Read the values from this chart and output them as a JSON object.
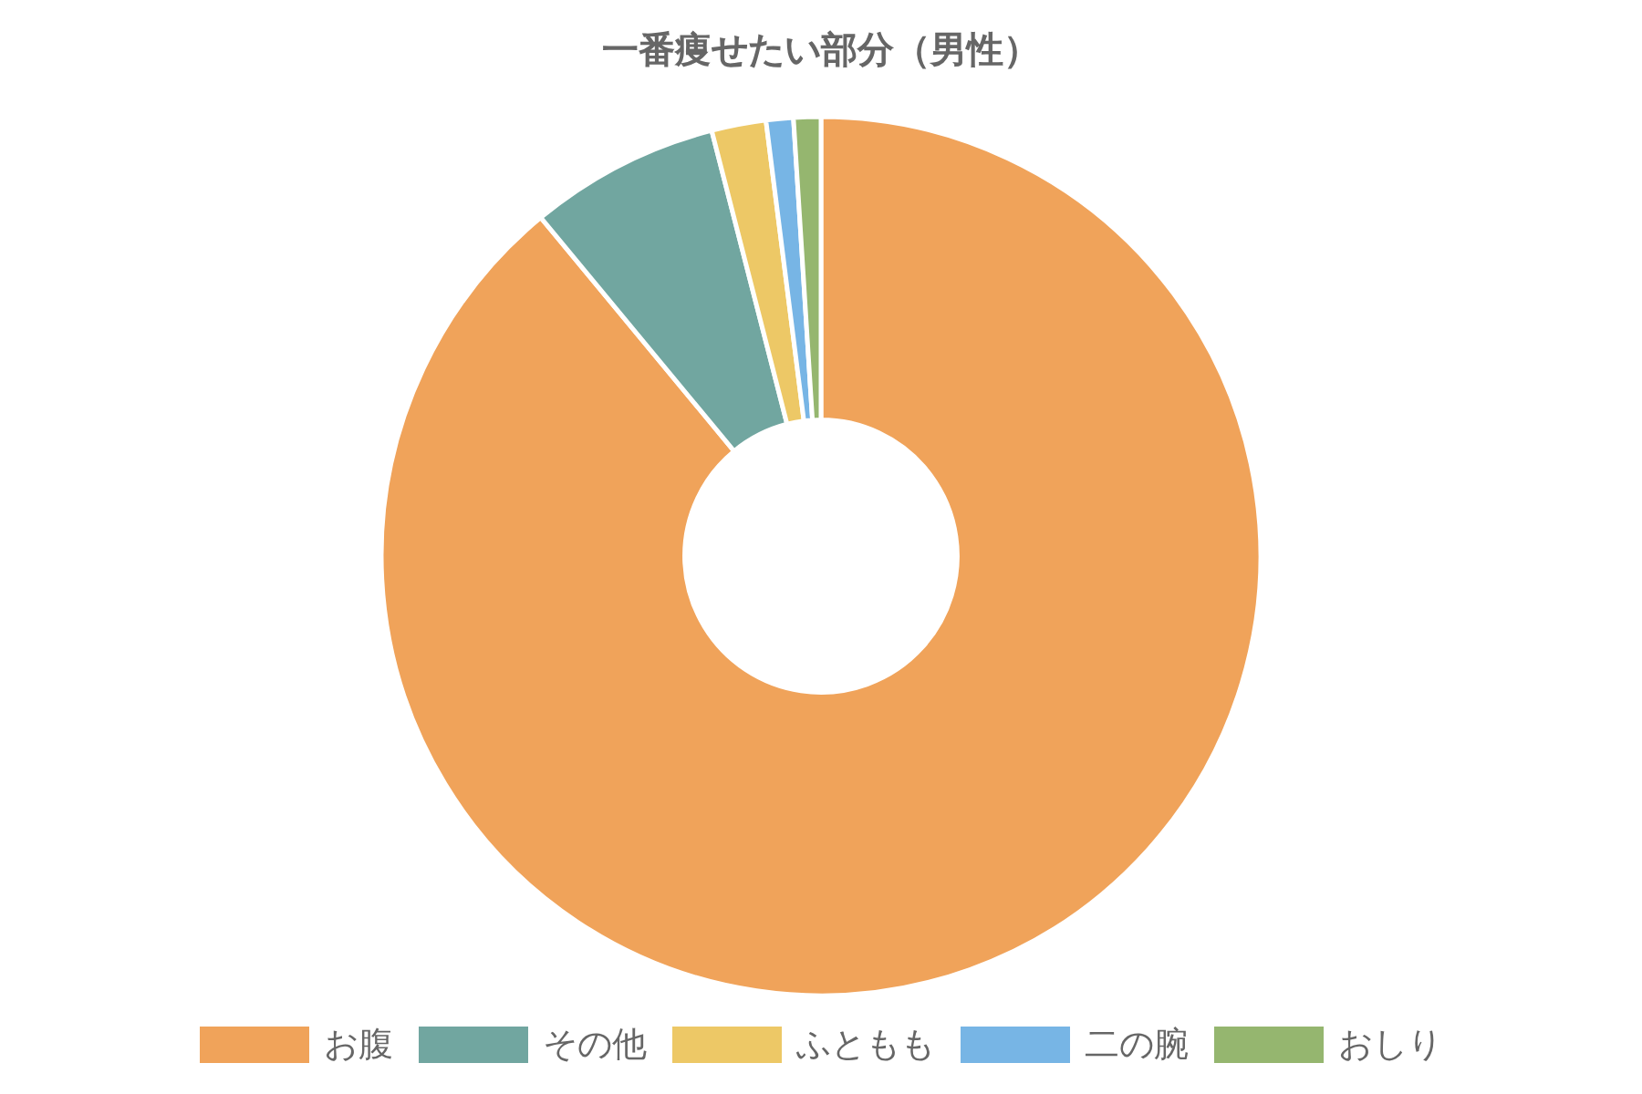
{
  "chart_data": {
    "type": "donut",
    "title": "一番痩せたい部分（男性）",
    "categories": [
      "お腹",
      "その他",
      "ふともも",
      "二の腕",
      "おしり"
    ],
    "values": [
      89,
      7,
      2,
      1,
      1
    ],
    "colors": [
      "#f0a35a",
      "#71a6a0",
      "#edc866",
      "#77b5e5",
      "#95b66f"
    ],
    "legend": "bottom"
  }
}
